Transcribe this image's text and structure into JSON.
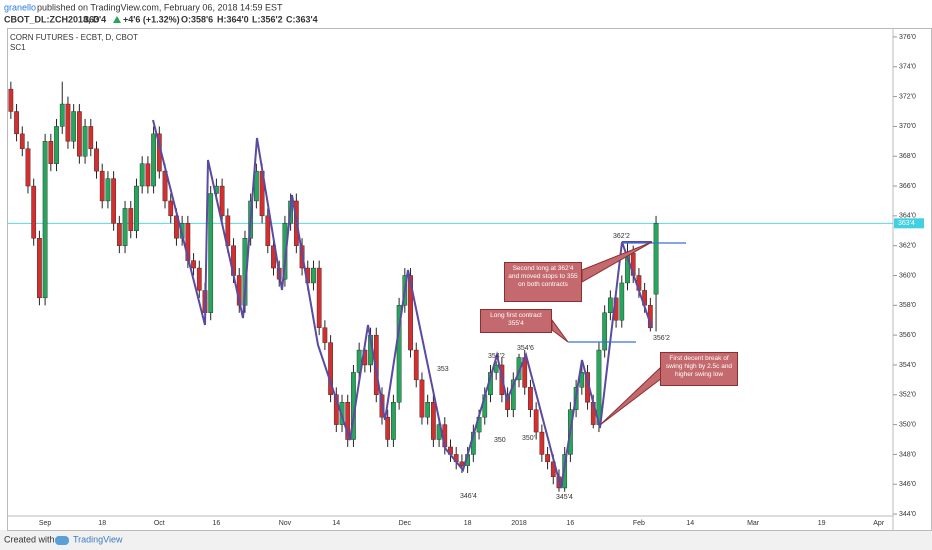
{
  "header": {
    "publisher": "granello",
    "published": "published on TradingView.com, February 06, 2018 14:59 EST",
    "symbol": "CBOT_DL:ZCH2018, D",
    "last": "363'4",
    "change": "+4'6 (+1.32%)",
    "open": "O:358'6",
    "high": "H:364'0",
    "low": "L:356'2",
    "close": "C:363'4"
  },
  "footer": {
    "created": "Created with",
    "brand": "TradingView"
  },
  "annotations": {
    "labels": [
      "353",
      "354'2",
      "354'6",
      "350",
      "350'",
      "346'4",
      "345'4",
      "362'2",
      "356'2"
    ],
    "notes": [
      "Second long at 362'4 and moved stops to 355 on both contracts",
      "Long first contract 355'4",
      "First decent break of swing high by 2.5c and higher swing low"
    ]
  },
  "chart_data": {
    "type": "candlestick",
    "title": "CORN FUTURES - ECBT, D, CBOT",
    "subtitle": "SC1",
    "up_color": "#26a65b",
    "down_color": "#d32f2f",
    "grid": false,
    "ylim": [
      343.87,
      376.6
    ],
    "yticks": [
      {
        "value": 344,
        "label": "344'0"
      },
      {
        "value": 346,
        "label": "346'0"
      },
      {
        "value": 348,
        "label": "348'0"
      },
      {
        "value": 350,
        "label": "350'0"
      },
      {
        "value": 352,
        "label": "352'0"
      },
      {
        "value": 354,
        "label": "354'0"
      },
      {
        "value": 356,
        "label": "356'0"
      },
      {
        "value": 358,
        "label": "358'0"
      },
      {
        "value": 360,
        "label": "360'0"
      },
      {
        "value": 362,
        "label": "362'0"
      },
      {
        "value": 364,
        "label": "364'0"
      },
      {
        "value": 366,
        "label": "366'0"
      },
      {
        "value": 368,
        "label": "368'0"
      },
      {
        "value": 370,
        "label": "370'0"
      },
      {
        "value": 372,
        "label": "372'0"
      },
      {
        "value": 374,
        "label": "374'0"
      },
      {
        "value": 376,
        "label": "376'0"
      }
    ],
    "last_price": {
      "value": 363.5,
      "label": "363'4",
      "color": "#40d0e0"
    },
    "categories": [
      null,
      null,
      null,
      null,
      null,
      null,
      "Sep",
      null,
      null,
      null,
      null,
      null,
      null,
      null,
      null,
      null,
      "18",
      null,
      null,
      null,
      null,
      null,
      null,
      null,
      null,
      null,
      "Oct",
      null,
      null,
      null,
      null,
      null,
      null,
      null,
      null,
      null,
      "16",
      null,
      null,
      null,
      null,
      null,
      null,
      null,
      null,
      null,
      null,
      null,
      "Nov",
      null,
      null,
      null,
      null,
      null,
      null,
      null,
      null,
      "14",
      null,
      null,
      null,
      null,
      null,
      null,
      null,
      null,
      null,
      null,
      null,
      "Dec",
      null,
      null,
      null,
      null,
      null,
      null,
      null,
      null,
      null,
      null,
      "18",
      null,
      null,
      null,
      null,
      null,
      null,
      null,
      null,
      "2018",
      null,
      null,
      null,
      null,
      null,
      null,
      null,
      null,
      "16",
      null,
      null,
      null,
      null,
      null,
      null,
      null,
      null,
      null,
      null,
      null,
      "Feb",
      null,
      null,
      null,
      null,
      null,
      null,
      null,
      null,
      "14",
      null,
      null,
      null,
      null,
      null,
      null,
      null,
      null,
      null,
      null,
      "Mar",
      null,
      null,
      null,
      null,
      null,
      null,
      null,
      null,
      null,
      null,
      null,
      "19",
      null,
      null,
      null,
      null,
      null,
      null,
      null,
      null,
      null,
      "Apr",
      null,
      null
    ],
    "open": [
      372.5,
      371,
      369.5,
      368.5,
      366,
      362.5,
      358.5,
      369,
      367.5,
      370,
      371.5,
      369,
      371,
      368,
      370,
      368.5,
      367,
      365,
      366.5,
      363.5,
      362,
      364.5,
      363,
      366,
      367.5,
      366,
      369.5,
      367,
      365,
      364,
      362.5,
      363.5,
      361,
      360.5,
      359,
      357.5,
      365.5,
      366,
      364,
      362,
      360,
      358,
      362.5,
      365,
      367,
      364,
      362,
      360.5,
      359.75,
      363.5,
      365,
      362,
      360.5,
      359.5,
      360.5,
      356.5,
      355.5,
      352,
      350,
      351.5,
      349,
      353.5,
      355,
      354,
      356,
      352,
      350.5,
      349,
      351.5,
      358,
      360,
      355,
      353,
      350.5,
      351.5,
      349,
      350,
      348.5,
      348,
      347.5,
      347.25,
      348,
      349.5,
      350.5,
      352,
      353.5,
      354,
      352,
      351,
      353,
      354.5,
      352.5,
      351,
      349.5,
      348,
      347.5,
      346.5,
      345.75,
      348,
      351,
      352.5,
      353.5,
      351.5,
      350,
      355,
      357.5,
      358.5,
      357,
      359.5,
      361.5,
      360,
      359,
      358,
      358.75,
      null,
      null,
      null,
      null,
      null,
      null,
      null,
      null,
      null,
      null,
      null,
      null,
      null,
      null,
      null,
      null,
      null,
      null,
      null,
      null,
      null,
      null,
      null,
      null,
      null,
      null,
      null,
      null,
      null,
      null,
      null,
      null,
      null,
      null,
      null,
      null,
      null,
      null,
      null,
      null,
      null
    ],
    "high": [
      373,
      371.5,
      370,
      369,
      366.5,
      363,
      369.5,
      369.5,
      370.5,
      373,
      372,
      371.5,
      371.5,
      370.5,
      370.5,
      369,
      367.5,
      367,
      367,
      364,
      365,
      365,
      366.5,
      368,
      368,
      370,
      370,
      367.5,
      365.5,
      364.5,
      364,
      364,
      361.5,
      361,
      359.5,
      366,
      366.5,
      366.5,
      364.5,
      362.5,
      360.5,
      363,
      365.5,
      367.5,
      367.5,
      364.5,
      362.5,
      361,
      364,
      365.5,
      365.5,
      362.5,
      361,
      361,
      361,
      357,
      356,
      352.5,
      352,
      352,
      354,
      355.5,
      355.5,
      356.5,
      356.5,
      352.5,
      351,
      352,
      358.5,
      360.5,
      360.5,
      355.5,
      353.5,
      352,
      352,
      350.5,
      350.5,
      349,
      348.5,
      348,
      348.5,
      350,
      351,
      352.5,
      354,
      354.25,
      354.5,
      352.5,
      353.5,
      354.75,
      355,
      353,
      351.5,
      350,
      348.5,
      348,
      347,
      348.5,
      351.5,
      353,
      354,
      354,
      352,
      355.5,
      358,
      359,
      359,
      360,
      362.25,
      362,
      360.5,
      359.5,
      358.5,
      364,
      null,
      null,
      null,
      null,
      null,
      null,
      null,
      null,
      null,
      null,
      null,
      null,
      null,
      null,
      null,
      null,
      null,
      null,
      null,
      null,
      null,
      null,
      null,
      null,
      null,
      null,
      null,
      null,
      null,
      null,
      null,
      null,
      null,
      null,
      null,
      null,
      null,
      null,
      null,
      null,
      null
    ],
    "low": [
      370.5,
      369,
      368,
      365.5,
      362,
      358,
      358,
      367,
      367,
      369.5,
      368.5,
      368.5,
      367.5,
      367.5,
      368,
      366.5,
      364.5,
      364.5,
      363,
      361.5,
      361.5,
      362.5,
      362.5,
      365.5,
      365.5,
      365.5,
      366.5,
      364.5,
      363.5,
      362,
      362,
      360.5,
      360,
      358.5,
      357,
      357,
      365,
      363.5,
      361.5,
      359.5,
      357.5,
      357.5,
      362,
      364.5,
      363.5,
      361.5,
      360,
      359.25,
      359.25,
      363,
      361.5,
      360,
      359,
      359,
      356,
      355,
      351.5,
      349.5,
      349.5,
      348.5,
      348.5,
      353,
      353.5,
      353.5,
      351.5,
      350,
      348.5,
      348.5,
      351,
      357.5,
      354.5,
      352.5,
      350,
      350,
      348.5,
      348.5,
      348,
      347.5,
      347,
      346.75,
      346.75,
      347.5,
      349,
      350,
      351.5,
      353,
      351.5,
      350.5,
      350.5,
      352.5,
      352,
      350.5,
      349,
      347.5,
      347,
      346,
      345.5,
      345.5,
      347.5,
      350.5,
      352,
      351,
      349.75,
      349.5,
      354.5,
      357,
      356.5,
      356.5,
      359,
      359.5,
      358.5,
      357.5,
      356.25,
      356.25,
      null,
      null,
      null,
      null,
      null,
      null,
      null,
      null,
      null,
      null,
      null,
      null,
      null,
      null,
      null,
      null,
      null,
      null,
      null,
      null,
      null,
      null,
      null,
      null,
      null,
      null,
      null,
      null,
      null,
      null,
      null,
      null,
      null,
      null,
      null,
      null,
      null,
      null,
      null,
      null,
      null
    ],
    "close": [
      371,
      369.5,
      368.5,
      366,
      362.5,
      358.5,
      369,
      367.5,
      370,
      371.5,
      369,
      371,
      368,
      370,
      368.5,
      367,
      365,
      366.5,
      363.5,
      362,
      364.5,
      363,
      366,
      367.5,
      366,
      369.5,
      367,
      365,
      364,
      362.5,
      363.5,
      361,
      360.5,
      359,
      357.5,
      365.5,
      366,
      364,
      362,
      360,
      358,
      362.5,
      365,
      367,
      364,
      362,
      360.5,
      359.75,
      363.5,
      365,
      362,
      360.5,
      359.5,
      360.5,
      356.5,
      355.5,
      352,
      350,
      351.5,
      349,
      353.5,
      355,
      354,
      356,
      352,
      350.5,
      349,
      351.5,
      358,
      360,
      355,
      353,
      350.5,
      351.5,
      349,
      350,
      348.5,
      348,
      347.5,
      347.25,
      348,
      349.5,
      350.5,
      352,
      353.5,
      354,
      352,
      351,
      353,
      354.5,
      352.5,
      351,
      349.5,
      348,
      347.5,
      346.5,
      345.75,
      348,
      351,
      352.5,
      353.5,
      351.5,
      350,
      355,
      357.5,
      358.5,
      357,
      359.5,
      361.5,
      360,
      359,
      358,
      356.5,
      363.5,
      null,
      null,
      null,
      null,
      null,
      null,
      null,
      null,
      null,
      null,
      null,
      null,
      null,
      null,
      null,
      null,
      null,
      null,
      null,
      null,
      null,
      null,
      null,
      null,
      null,
      null,
      null,
      null,
      null,
      null,
      null,
      null,
      null,
      null,
      null,
      null,
      null,
      null,
      null,
      null,
      null
    ]
  }
}
